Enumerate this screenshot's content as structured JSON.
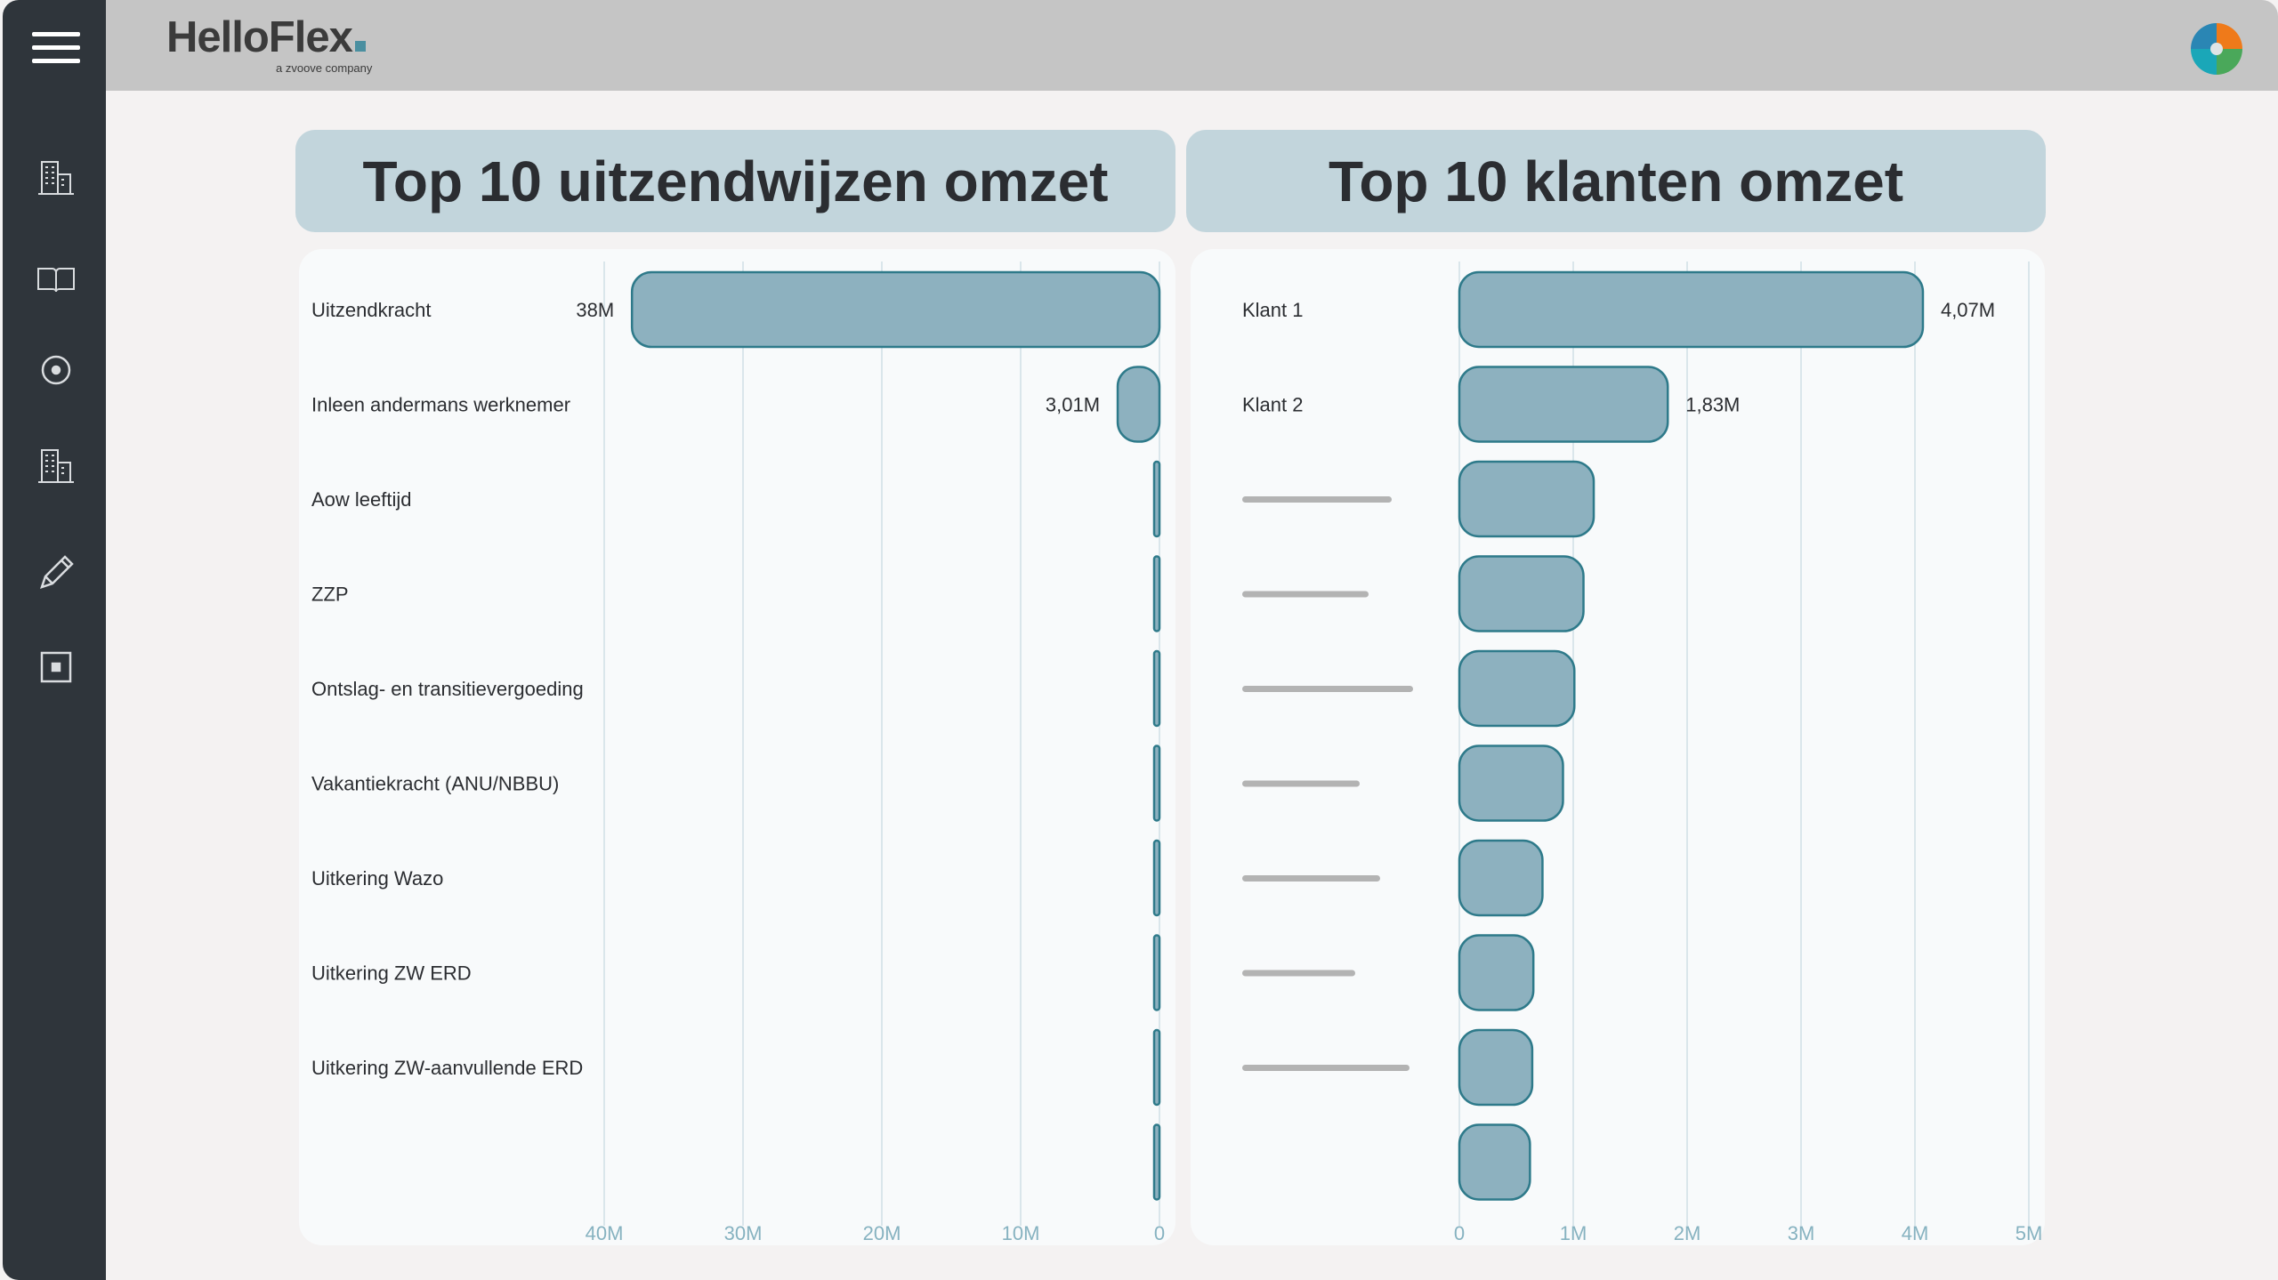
{
  "app": {
    "brand": "HelloFlex",
    "tagline": "a zvoove company"
  },
  "sidebar": {
    "menu_icon": "hamburger-icon",
    "items": [
      {
        "icon": "building-icon"
      },
      {
        "icon": "book-icon"
      },
      {
        "icon": "target-icon"
      },
      {
        "icon": "building-icon"
      },
      {
        "icon": "pencil-icon"
      },
      {
        "icon": "square-icon"
      }
    ]
  },
  "header": {
    "avatar_icon": "pie-chart-icon"
  },
  "colors": {
    "bar_fill": "#8db1bf",
    "bar_stroke": "#2e7a8a",
    "grid": "#cfe0e6",
    "tick": "#86b2c0",
    "title_bg": "#c2d5dc"
  },
  "charts": {
    "left": {
      "title": "Top 10 uitzendwijzen omzet"
    },
    "right": {
      "title": "Top 10 klanten omzet"
    }
  },
  "chart_data": [
    {
      "type": "bar",
      "orientation": "horizontal",
      "x_reversed": true,
      "title": "Top 10 uitzendwijzen omzet",
      "categories": [
        "Uitzendkracht",
        "Inleen andermans werknemer",
        "Aow leeftijd",
        "ZZP",
        "Ontslag- en transitievergoeding",
        "Vakantiekracht (ANU/NBBU)",
        "Uitkering Wazo",
        "Uitkering ZW ERD",
        "Uitkering ZW-aanvullende ERD",
        ""
      ],
      "values": [
        38000000,
        3010000,
        300000,
        150000,
        100000,
        0,
        0,
        0,
        0,
        0
      ],
      "data_labels": [
        "38M",
        "3,01M",
        "",
        "",
        "",
        "",
        "",
        "",
        "",
        ""
      ],
      "xlim": [
        0,
        40000000
      ],
      "x_ticks": [
        40000000,
        30000000,
        20000000,
        10000000,
        0
      ],
      "x_tick_labels": [
        "40M",
        "30M",
        "20M",
        "10M",
        "0"
      ],
      "grid": true
    },
    {
      "type": "bar",
      "orientation": "horizontal",
      "title": "Top 10 klanten omzet",
      "categories": [
        "Klant 1",
        "Klant 2",
        "",
        "",
        "",
        "",
        "",
        "",
        "",
        ""
      ],
      "values": [
        4070000,
        1830000,
        1180000,
        1090000,
        1010000,
        910000,
        730000,
        650000,
        640000,
        620000
      ],
      "data_labels": [
        "4,07M",
        "1,83M",
        "",
        "",
        "",
        "",
        "",
        "",
        "",
        ""
      ],
      "xlim": [
        0,
        5000000
      ],
      "x_ticks": [
        0,
        1000000,
        2000000,
        3000000,
        4000000,
        5000000
      ],
      "x_tick_labels": [
        "0",
        "1M",
        "2M",
        "3M",
        "4M",
        "5M"
      ],
      "grid": true
    }
  ]
}
